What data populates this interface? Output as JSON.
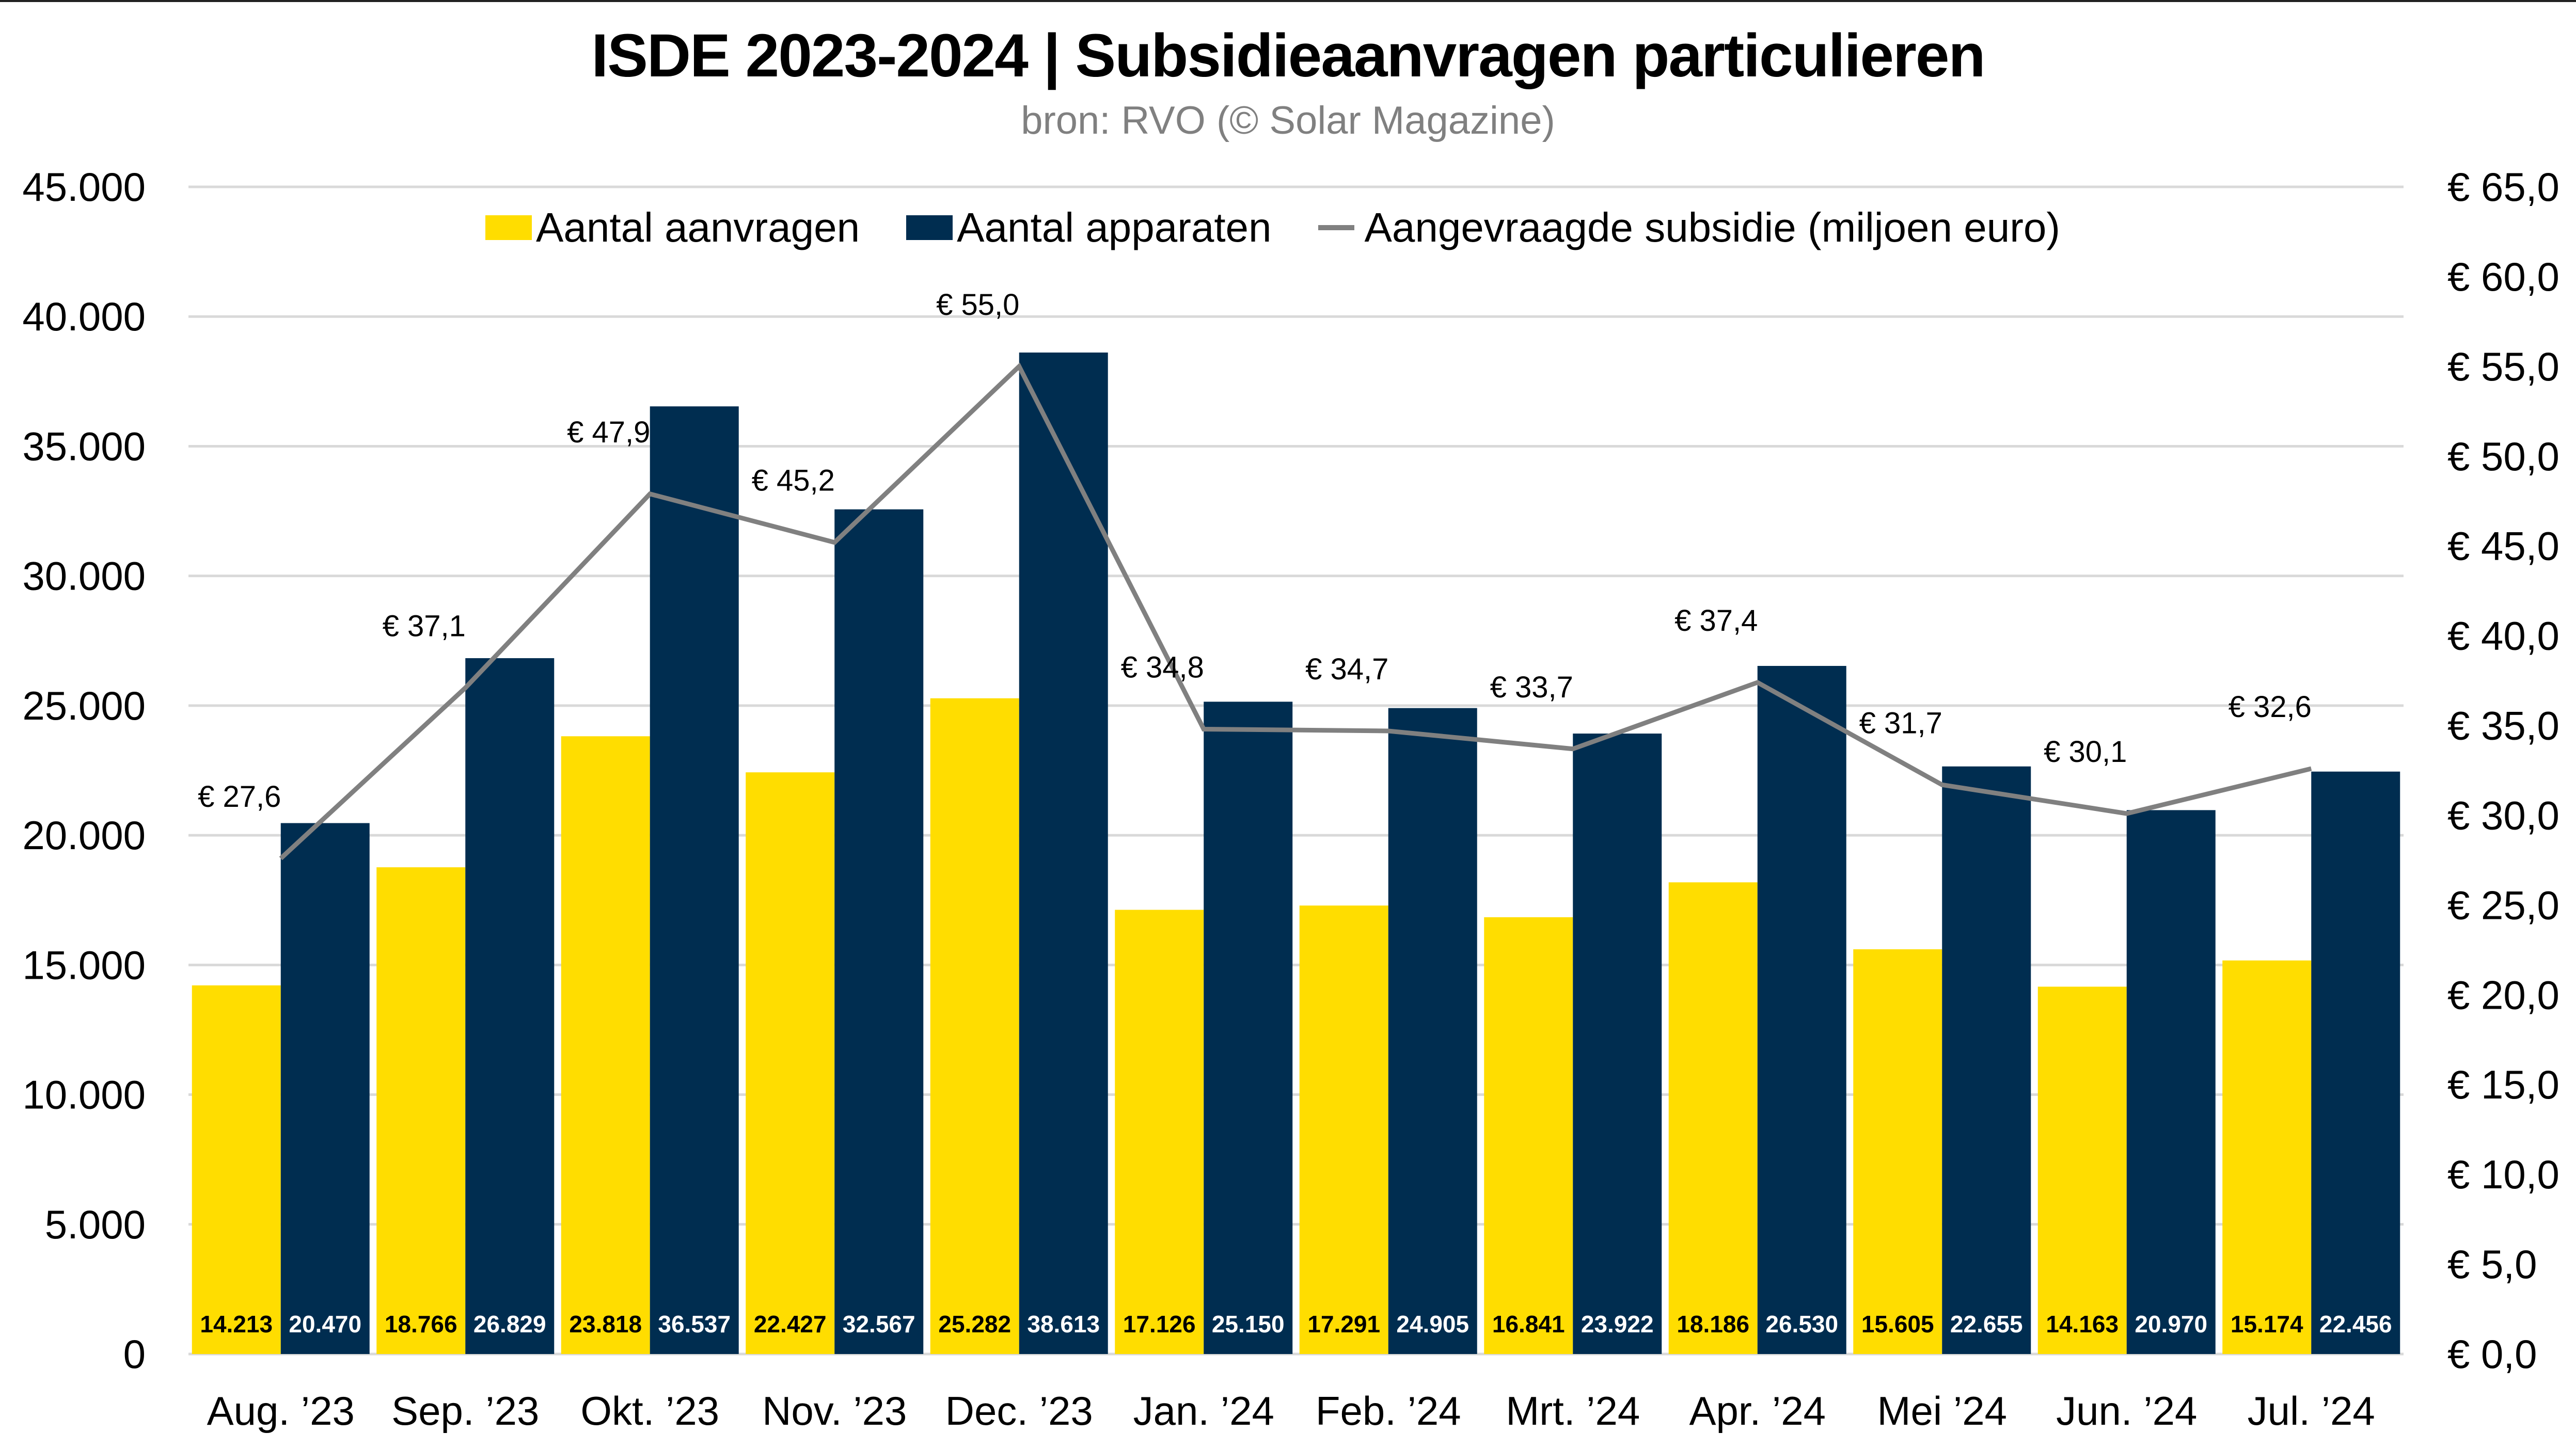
{
  "title": "ISDE 2023-2024 | Subsidieaanvragen particulieren",
  "subtitle": "bron: RVO (© Solar Magazine)",
  "colors": {
    "aanvragen": "#FFDD00",
    "apparaten": "#002D50",
    "subsidie": "#808080",
    "grid": "#D9D9D9"
  },
  "chart_data": {
    "type": "bar+line",
    "title": "ISDE 2023-2024 | Subsidieaanvragen particulieren",
    "subtitle": "bron: RVO (© Solar Magazine)",
    "categories": [
      "Aug. ’23",
      "Sep. ’23",
      "Okt. ’23",
      "Nov. ’23",
      "Dec. ’23",
      "Jan. ’24",
      "Feb. ’24",
      "Mrt. ’24",
      "Apr. ’24",
      "Mei ’24",
      "Jun. ’24",
      "Jul. ’24"
    ],
    "series": [
      {
        "name": "Aantal aanvragen",
        "type": "bar",
        "axis": "left",
        "values": [
          14213,
          18766,
          23818,
          22427,
          25282,
          17126,
          17291,
          16841,
          18186,
          15605,
          14163,
          15174
        ],
        "labels": [
          "14.213",
          "18.766",
          "23.818",
          "22.427",
          "25.282",
          "17.126",
          "17.291",
          "16.841",
          "18.186",
          "15.605",
          "14.163",
          "15.174"
        ]
      },
      {
        "name": "Aantal apparaten",
        "type": "bar",
        "axis": "left",
        "values": [
          20470,
          26829,
          36537,
          32567,
          38613,
          25150,
          24905,
          23922,
          26530,
          22655,
          20970,
          22456
        ],
        "labels": [
          "20.470",
          "26.829",
          "36.537",
          "32.567",
          "38.613",
          "25.150",
          "24.905",
          "23.922",
          "26.530",
          "22.655",
          "20.970",
          "22.456"
        ]
      },
      {
        "name": "Aangevraagde subsidie (miljoen euro)",
        "type": "line",
        "axis": "right",
        "values": [
          27.6,
          37.1,
          47.9,
          45.2,
          55.0,
          34.8,
          34.7,
          33.7,
          37.4,
          31.7,
          30.1,
          32.6
        ],
        "labels": [
          "€ 27,6",
          "€ 37,1",
          "€ 47,9",
          "€ 45,2",
          "€ 55,0",
          "€ 34,8",
          "€ 34,7",
          "€ 33,7",
          "€ 37,4",
          "€ 31,7",
          "€ 30,1",
          "€ 32,6"
        ]
      }
    ],
    "y_left": {
      "range": [
        0,
        45000
      ],
      "ticks": [
        0,
        5000,
        10000,
        15000,
        20000,
        25000,
        30000,
        35000,
        40000,
        45000
      ],
      "tick_labels": [
        "0",
        "5.000",
        "10.000",
        "15.000",
        "20.000",
        "25.000",
        "30.000",
        "35.000",
        "40.000",
        "45.000"
      ]
    },
    "y_right": {
      "range": [
        0,
        65
      ],
      "ticks": [
        0,
        5,
        10,
        15,
        20,
        25,
        30,
        35,
        40,
        45,
        50,
        55,
        60,
        65
      ],
      "tick_labels": [
        "€ 0,0",
        "€ 5,0",
        "€ 10,0",
        "€ 15,0",
        "€ 20,0",
        "€ 25,0",
        "€ 30,0",
        "€ 35,0",
        "€ 40,0",
        "€ 45,0",
        "€ 50,0",
        "€ 55,0",
        "€ 60,0",
        "€ 65,0"
      ]
    },
    "grid": true,
    "legend": {
      "position": "top",
      "entries": [
        "Aantal aanvragen",
        "Aantal apparaten",
        "Aangevraagde subsidie (miljoen euro)"
      ]
    }
  }
}
